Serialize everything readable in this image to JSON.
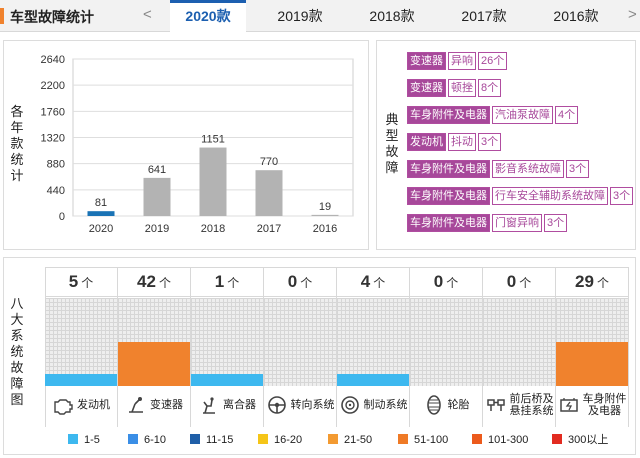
{
  "header": {
    "title": "车型故障统计",
    "prev": "<",
    "next": ">",
    "years": [
      "2020款",
      "2019款",
      "2018款",
      "2017款",
      "2016款"
    ],
    "active_index": 0
  },
  "chart_panel": {
    "ylabel_chars": [
      "各",
      "年",
      "款",
      "统",
      "计"
    ]
  },
  "chart_data": {
    "type": "bar",
    "categories": [
      "2020",
      "2019",
      "2018",
      "2017",
      "2016"
    ],
    "values": [
      81,
      641,
      1151,
      770,
      19
    ],
    "ylim": [
      0,
      2640
    ],
    "yticks": [
      "0",
      "440",
      "880",
      "1320",
      "1760",
      "2200",
      "2640"
    ],
    "highlight_color": "#1a73b5",
    "bar_color": "#b3b3b3",
    "grid": true
  },
  "faults_panel": {
    "label_chars": [
      "典",
      "型",
      "故",
      "障"
    ],
    "items": [
      {
        "category": "变速器",
        "issue": "异响",
        "count": "26个"
      },
      {
        "category": "变速器",
        "issue": "顿挫",
        "count": "8个"
      },
      {
        "category": "车身附件及电器",
        "issue": "汽油泵故障",
        "count": "4个"
      },
      {
        "category": "发动机",
        "issue": "抖动",
        "count": "3个"
      },
      {
        "category": "车身附件及电器",
        "issue": "影音系统故障",
        "count": "3个"
      },
      {
        "category": "车身附件及电器",
        "issue": "行车安全辅助系统故障",
        "count": "3个"
      },
      {
        "category": "车身附件及电器",
        "issue": "门窗异响",
        "count": "3个"
      }
    ]
  },
  "systems_panel": {
    "label_chars": [
      "八",
      "大",
      "系",
      "统",
      "故",
      "障",
      "图"
    ],
    "unit": "个",
    "systems": [
      {
        "name": "发动机",
        "name2": "",
        "count": "5",
        "level": 0.14,
        "color": "#3db8ef",
        "icon": "engine-icon"
      },
      {
        "name": "变速器",
        "name2": "",
        "count": "42",
        "level": 0.5,
        "color": "#f0822d",
        "icon": "gearbox-icon"
      },
      {
        "name": "离合器",
        "name2": "",
        "count": "1",
        "level": 0.14,
        "color": "#3db8ef",
        "icon": "clutch-icon"
      },
      {
        "name": "转向系统",
        "name2": "",
        "count": "0",
        "level": 0,
        "color": "#3db8ef",
        "icon": "steering-icon"
      },
      {
        "name": "制动系统",
        "name2": "",
        "count": "4",
        "level": 0.14,
        "color": "#3db8ef",
        "icon": "brake-icon"
      },
      {
        "name": "轮胎",
        "name2": "",
        "count": "0",
        "level": 0,
        "color": "#3db8ef",
        "icon": "tire-icon"
      },
      {
        "name": "前后桥及",
        "name2": "悬挂系统",
        "count": "0",
        "level": 0,
        "color": "#3db8ef",
        "icon": "suspension-icon"
      },
      {
        "name": "车身附件",
        "name2": "及电器",
        "count": "29",
        "level": 0.5,
        "color": "#f0822d",
        "icon": "battery-icon"
      }
    ]
  },
  "legend": [
    {
      "label": "1-5",
      "color": "#3db8ef"
    },
    {
      "label": "6-10",
      "color": "#3a8ee6"
    },
    {
      "label": "11-15",
      "color": "#1f5fa8"
    },
    {
      "label": "16-20",
      "color": "#f5c518"
    },
    {
      "label": "21-50",
      "color": "#f39a31"
    },
    {
      "label": "51-100",
      "color": "#ef7a26"
    },
    {
      "label": "101-300",
      "color": "#ec5a1c"
    },
    {
      "label": "300以上",
      "color": "#e22b20"
    }
  ]
}
